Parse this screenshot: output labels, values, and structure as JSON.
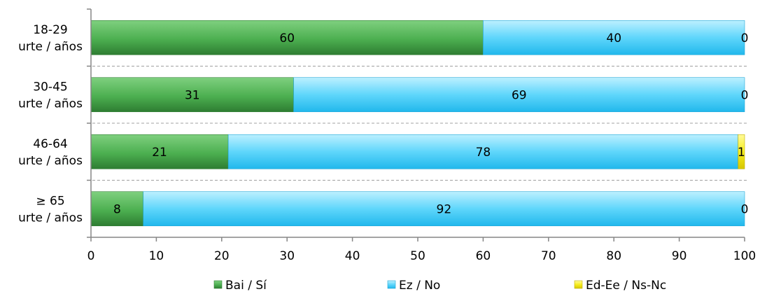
{
  "chart_data": {
    "type": "bar",
    "orientation": "horizontal",
    "stacked": true,
    "categories": [
      [
        "18-29",
        "urte / años"
      ],
      [
        "30-45",
        "urte / años"
      ],
      [
        "46-64",
        "urte / años"
      ],
      [
        "≥ 65",
        "urte / años"
      ]
    ],
    "series": [
      {
        "name": "Bai / Sí",
        "values": [
          60,
          31,
          21,
          8
        ],
        "labels": [
          "60",
          "31",
          "21",
          "8"
        ],
        "color": "#43a047"
      },
      {
        "name": "Ez / No",
        "values": [
          40,
          69,
          78,
          92
        ],
        "labels": [
          "40",
          "69",
          "78",
          "92"
        ],
        "color": "#29c6f5"
      },
      {
        "name": "Ed-Ee / Ns-Nc",
        "values": [
          0,
          0,
          1,
          0
        ],
        "labels": [
          "0",
          "0",
          "1",
          "0"
        ],
        "color": "#f2e600"
      }
    ],
    "xlim": [
      0,
      100
    ],
    "xticks": [
      "0",
      "10",
      "20",
      "30",
      "40",
      "50",
      "60",
      "70",
      "80",
      "90",
      "100"
    ],
    "legend_position": "bottom",
    "separators": "dashed"
  }
}
